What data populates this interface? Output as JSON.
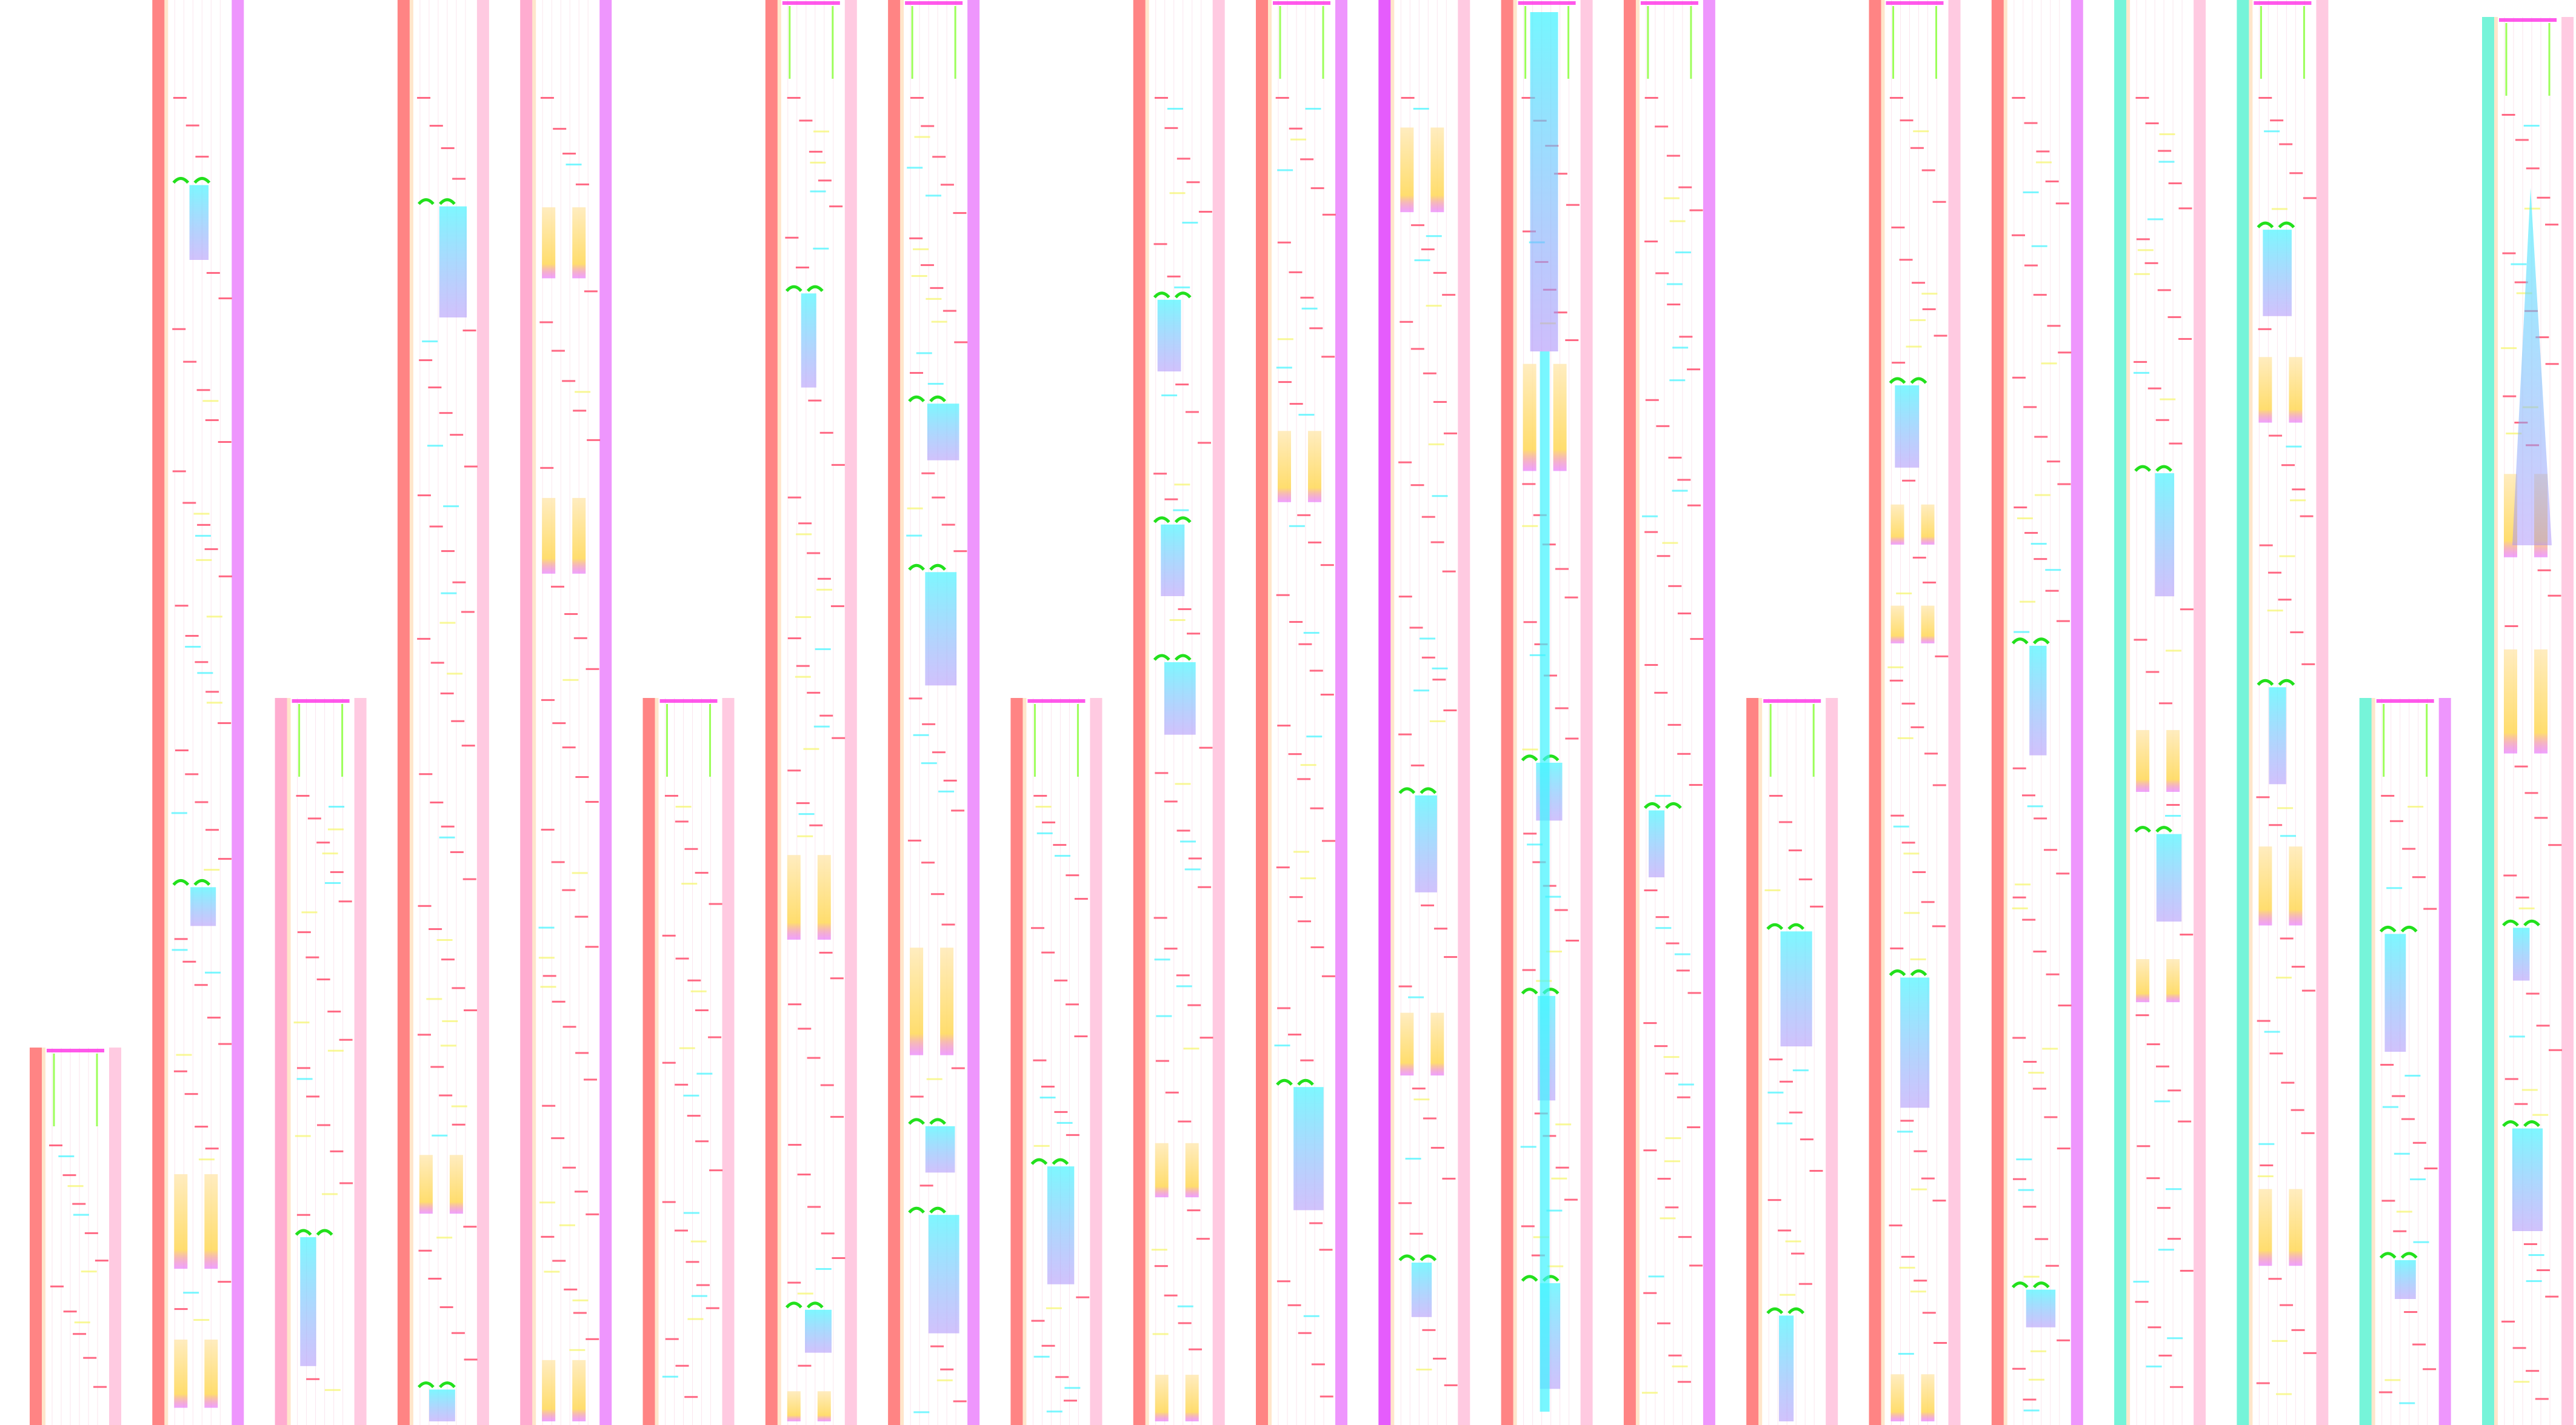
{
  "diagram": {
    "column_count": 21,
    "colors": {
      "background": "#ffffff",
      "edge_red": "#ff6f6f",
      "edge_pink": "#ff9ec8",
      "edge_magenta": "#e040fb",
      "edge_teal": "#5ef2d2",
      "edge_orange": "#ffb86b",
      "marker_red": "#ff4d6d",
      "marker_yellow": "#f5f56a",
      "connector_green": "#9cff5a",
      "arrow_green": "#22e01c",
      "flow_cyan": "#3ff4ff",
      "flow_violet": "#a78bfa",
      "bar_magenta": "#ff2ee6",
      "bar_gold": "#ffd54a",
      "grid": "#fbe6ee"
    },
    "left_edge_palette": [
      "red",
      "red",
      "pink",
      "red",
      "pink",
      "red",
      "red",
      "red",
      "red",
      "red",
      "red",
      "magenta",
      "red",
      "red",
      "red",
      "red",
      "red",
      "teal",
      "teal",
      "teal",
      "teal"
    ]
  }
}
